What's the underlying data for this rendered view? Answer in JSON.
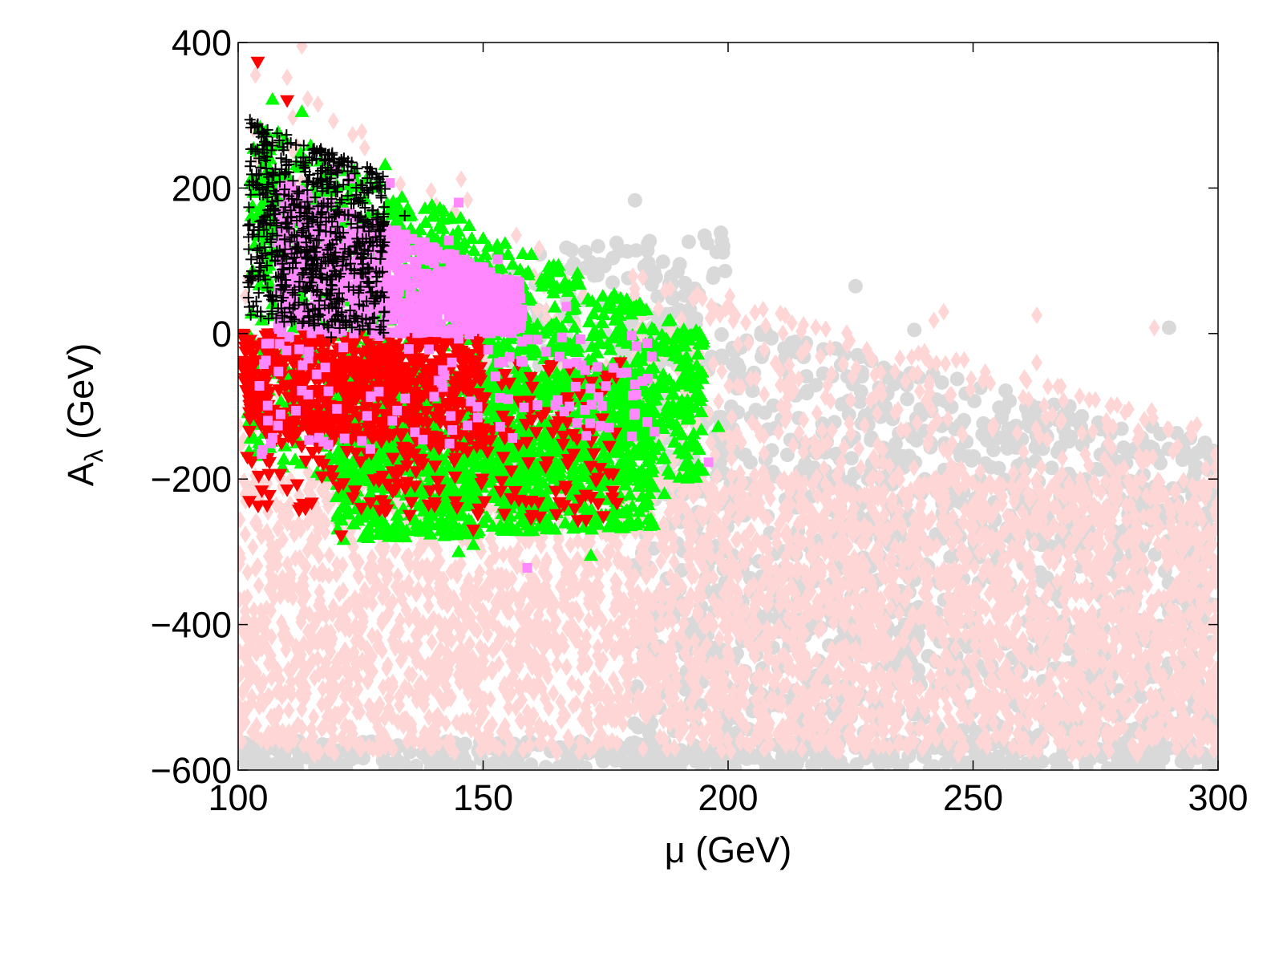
{
  "chart_data": {
    "type": "scatter",
    "title": "",
    "xlabel": "μ (GeV)",
    "ylabel_main": "A",
    "ylabel_sub": "λ",
    "ylabel_unit": " (GeV)",
    "xlim": [
      100,
      300
    ],
    "ylim": [
      -600,
      400
    ],
    "xticks": [
      100,
      150,
      200,
      250,
      300
    ],
    "yticks": [
      -600,
      -400,
      -200,
      0,
      200,
      400
    ],
    "xtick_labels": [
      "100",
      "150",
      "200",
      "250",
      "300"
    ],
    "ytick_labels": [
      "−600",
      "−400",
      "−200",
      "0",
      "200",
      "400"
    ],
    "grid": false,
    "legend": "none",
    "series": [
      {
        "marker": "circle",
        "color": "#d9d9d9",
        "regions": [
          {
            "x": [
              100,
              300
            ],
            "ylow": [
              -600,
              -600
            ],
            "yhigh": [
              -560,
              -560
            ],
            "n": 500
          },
          {
            "x": [
              180,
              300
            ],
            "ylow": [
              -550,
              -560
            ],
            "yhigh": [
              50,
              -150
            ],
            "n": 1400
          },
          {
            "x": [
              150,
              200
            ],
            "ylow": [
              -200,
              -200
            ],
            "yhigh": [
              100,
              150
            ],
            "n": 250
          }
        ],
        "points": [
          [
            181,
            183
          ],
          [
            199,
            120
          ],
          [
            167,
            118
          ],
          [
            226,
            65
          ],
          [
            238,
            5
          ],
          [
            290,
            8
          ],
          [
            112,
            -590
          ],
          [
            107,
            -595
          ],
          [
            160,
            -600
          ]
        ]
      },
      {
        "marker": "diamond",
        "color": "#ffd6d6",
        "regions": [
          {
            "x": [
              100,
              300
            ],
            "ylow": [
              -575,
              -575
            ],
            "yhigh": [
              -190,
              -200
            ],
            "n": 2600
          },
          {
            "x": [
              100,
              300
            ],
            "ylow": [
              -580,
              -580
            ],
            "yhigh": [
              -300,
              -400
            ],
            "n": 700
          },
          {
            "x": [
              180,
              300
            ],
            "ylow": [
              -300,
              -500
            ],
            "yhigh": [
              90,
              -130
            ],
            "n": 700
          },
          {
            "x": [
              100,
              180
            ],
            "ylow": [
              -250,
              -250
            ],
            "yhigh": [
              380,
              90
            ],
            "n": 150
          }
        ],
        "points": [
          [
            113,
            395
          ],
          [
            110,
            352
          ],
          [
            244,
            30
          ],
          [
            263,
            25
          ],
          [
            242,
            18
          ],
          [
            287,
            8
          ],
          [
            278,
            -100
          ],
          [
            263,
            -40
          ]
        ]
      },
      {
        "marker": "triangle-up",
        "color": "#00ff00",
        "regions": [
          {
            "x": [
              102,
              195
            ],
            "ylow": [
              -200,
              -200
            ],
            "yhigh": [
              300,
              0
            ],
            "n": 1200
          },
          {
            "x": [
              120,
              185
            ],
            "ylow": [
              -285,
              -265
            ],
            "yhigh": [
              -60,
              -50
            ],
            "n": 1000
          },
          {
            "x": [
              102,
              160
            ],
            "ylow": [
              -200,
              -240
            ],
            "yhigh": [
              300,
              60
            ],
            "n": 300
          }
        ],
        "points": [
          [
            107,
            322
          ],
          [
            113,
            305
          ],
          [
            130,
            232
          ],
          [
            158,
            68
          ],
          [
            172,
            -305
          ],
          [
            190,
            -2
          ],
          [
            198,
            -128
          ],
          [
            187,
            -220
          ],
          [
            176,
            -250
          ],
          [
            155,
            -270
          ],
          [
            148,
            -290
          ],
          [
            145,
            -300
          ],
          [
            138,
            -270
          ]
        ]
      },
      {
        "marker": "triangle-down",
        "color": "#ff0000",
        "regions": [
          {
            "x": [
              101,
              150
            ],
            "ylow": [
              -130,
              -160
            ],
            "yhigh": [
              0,
              0
            ],
            "n": 600
          },
          {
            "x": [
              101,
              178
            ],
            "ylow": [
              -240,
              -260
            ],
            "yhigh": [
              -40,
              -40
            ],
            "n": 300
          }
        ],
        "points": [
          [
            104,
            373
          ],
          [
            110,
            320
          ],
          [
            178,
            -40
          ],
          [
            175,
            -75
          ],
          [
            172,
            -225
          ],
          [
            121,
            -278
          ],
          [
            115,
            -233
          ],
          [
            110,
            -215
          ],
          [
            148,
            -270
          ],
          [
            160,
            -250
          ],
          [
            130,
            -235
          ],
          [
            135,
            -250
          ]
        ]
      },
      {
        "marker": "square",
        "color": "#ff88ff",
        "regions": [
          {
            "x": [
              108,
              158
            ],
            "ylow": [
              0,
              0
            ],
            "yhigh": [
              210,
              70
            ],
            "n": 1000
          },
          {
            "x": [
              104,
              185
            ],
            "ylow": [
              -170,
              -140
            ],
            "yhigh": [
              0,
              0
            ],
            "n": 120
          }
        ],
        "points": [
          [
            131,
            207
          ],
          [
            145,
            180
          ],
          [
            143,
            128
          ],
          [
            153,
            102
          ],
          [
            167,
            37
          ],
          [
            159,
            -322
          ],
          [
            196,
            -177
          ],
          [
            181,
            -70
          ],
          [
            185,
            -135
          ],
          [
            105,
            -160
          ],
          [
            123,
            213
          ],
          [
            120,
            225
          ]
        ]
      },
      {
        "marker": "plus",
        "color": "#000000",
        "regions": [
          {
            "x": [
              102,
              130
            ],
            "ylow": [
              20,
              0
            ],
            "yhigh": [
              295,
              220
            ],
            "n": 700
          }
        ],
        "points": [
          [
            104,
            288
          ],
          [
            106,
            280
          ],
          [
            134,
            162
          ],
          [
            119,
            67
          ],
          [
            115,
            70
          ],
          [
            119,
            -5
          ],
          [
            120,
            35
          ]
        ]
      }
    ]
  }
}
